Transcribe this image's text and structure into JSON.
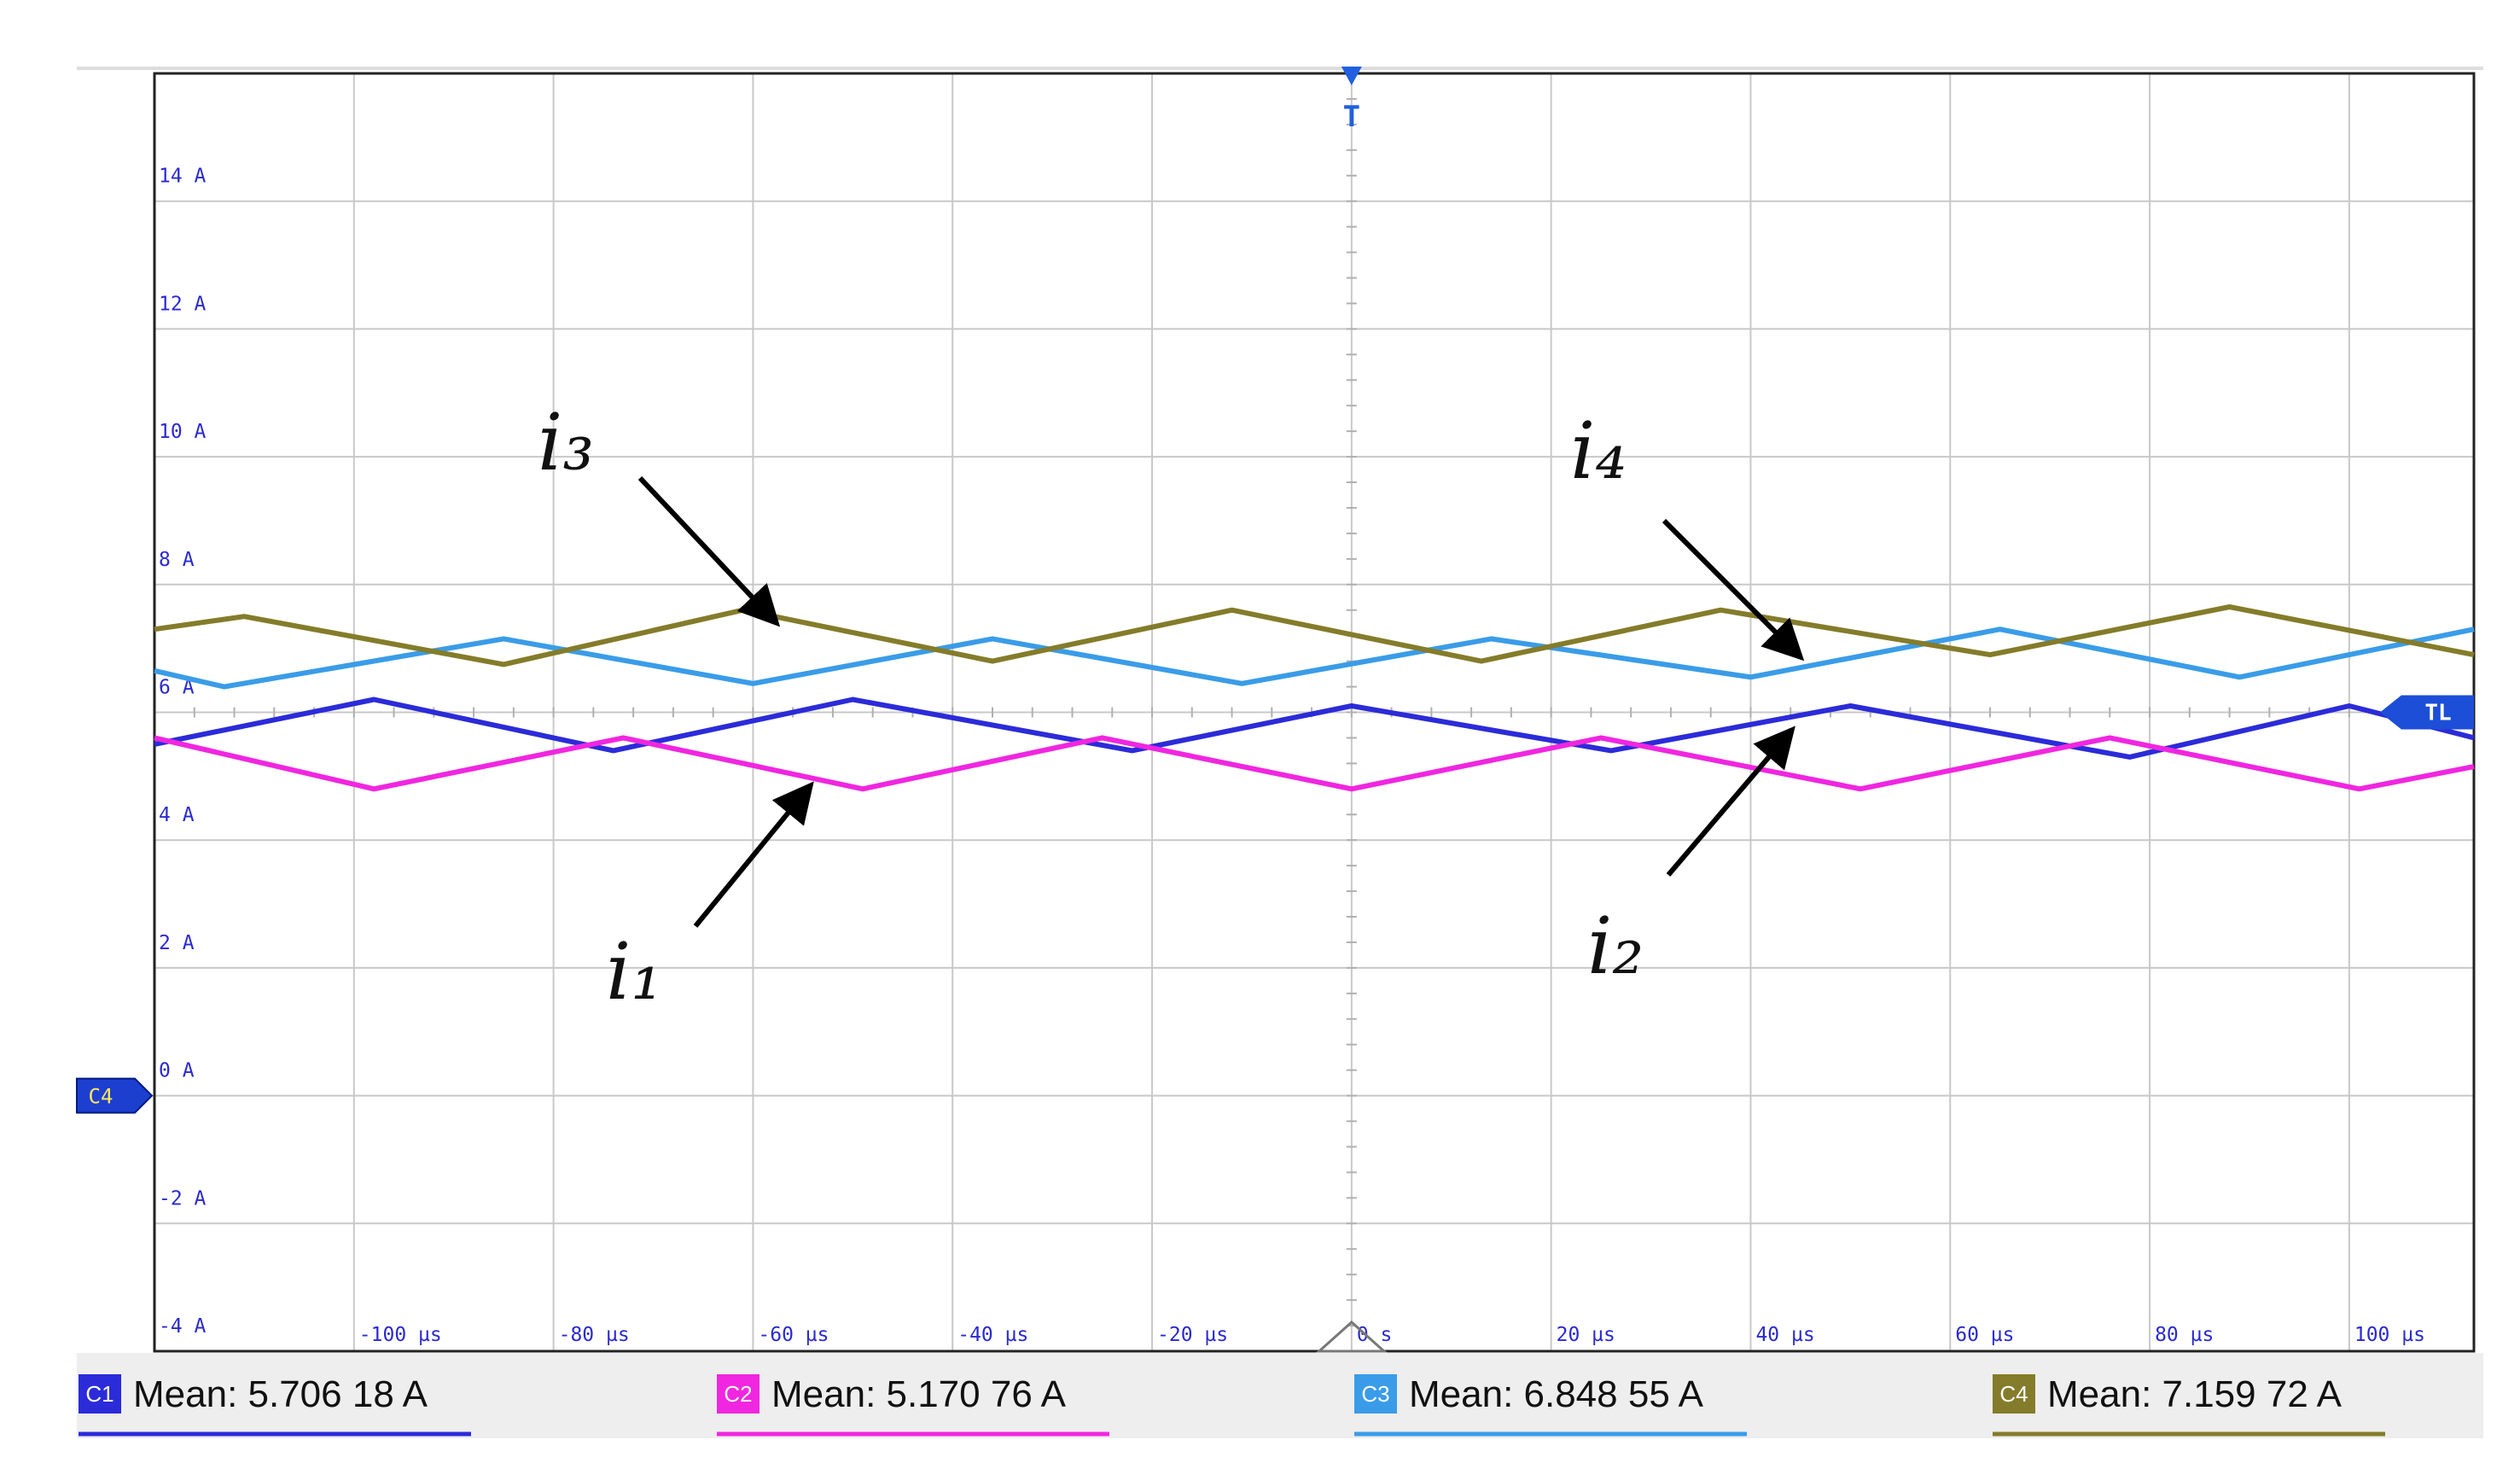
{
  "chart_data": {
    "type": "line",
    "xlim": [
      -120,
      112.5
    ],
    "ylim": [
      -4,
      16
    ],
    "xticks": [
      {
        "value": -100,
        "label": "-100 µs"
      },
      {
        "value": -80,
        "label": "-80 µs"
      },
      {
        "value": -60,
        "label": "-60 µs"
      },
      {
        "value": -40,
        "label": "-40 µs"
      },
      {
        "value": -20,
        "label": "-20 µs"
      },
      {
        "value": 0,
        "label": "0 s"
      },
      {
        "value": 20,
        "label": "20 µs"
      },
      {
        "value": 40,
        "label": "40 µs"
      },
      {
        "value": 60,
        "label": "60 µs"
      },
      {
        "value": 80,
        "label": "80 µs"
      },
      {
        "value": 100,
        "label": "100 µs"
      }
    ],
    "yticks": [
      {
        "value": -4,
        "label": "-4 A"
      },
      {
        "value": -2,
        "label": "-2 A"
      },
      {
        "value": 0,
        "label": "0 A"
      },
      {
        "value": 2,
        "label": "2 A"
      },
      {
        "value": 4,
        "label": "4 A"
      },
      {
        "value": 6,
        "label": "6 A"
      },
      {
        "value": 8,
        "label": "8 A"
      },
      {
        "value": 10,
        "label": "10 A"
      },
      {
        "value": 12,
        "label": "12 A"
      },
      {
        "value": 14,
        "label": "14 A"
      }
    ],
    "grid": true,
    "series": [
      {
        "name": "C1",
        "color": "#2b2bd9",
        "x": [
          -120,
          -98,
          -74,
          -50,
          -22,
          0,
          26,
          50,
          78,
          100,
          112.5
        ],
        "values": [
          5.5,
          6.2,
          5.4,
          6.2,
          5.4,
          6.1,
          5.4,
          6.1,
          5.3,
          6.1,
          5.6
        ]
      },
      {
        "name": "C2",
        "color": "#f026e0",
        "x": [
          -120,
          -98,
          -73,
          -49,
          -25,
          0,
          25,
          51,
          76,
          101,
          112.5
        ],
        "values": [
          5.6,
          4.8,
          5.6,
          4.8,
          5.6,
          4.8,
          5.6,
          4.8,
          5.6,
          4.8,
          5.15
        ]
      },
      {
        "name": "C3",
        "color": "#3a9ce8",
        "x": [
          -120,
          -113,
          -85,
          -60,
          -36,
          -11,
          14,
          40,
          65,
          89,
          112.5
        ],
        "values": [
          6.65,
          6.4,
          7.15,
          6.45,
          7.15,
          6.45,
          7.15,
          6.55,
          7.3,
          6.55,
          7.3
        ]
      },
      {
        "name": "C4",
        "color": "#847c2a",
        "x": [
          -120,
          -111,
          -85,
          -61,
          -36,
          -12,
          13,
          37,
          64,
          88,
          112.5
        ],
        "values": [
          7.3,
          7.5,
          6.75,
          7.6,
          6.8,
          7.6,
          6.8,
          7.6,
          6.9,
          7.65,
          6.9
        ]
      }
    ],
    "annotations": [
      {
        "text": "i₃"
      },
      {
        "text": "i₄"
      },
      {
        "text": "i₁"
      },
      {
        "text": "i₂"
      }
    ],
    "markers": {
      "trigger": "T",
      "trigger_level": "TL",
      "ground": "C4"
    },
    "measurements": [
      {
        "channel": "C1",
        "text": "Mean: 5.706 18 A"
      },
      {
        "channel": "C2",
        "text": "Mean: 5.170 76 A"
      },
      {
        "channel": "C3",
        "text": "Mean: 6.848 55 A"
      },
      {
        "channel": "C4",
        "text": "Mean: 7.159 72 A"
      }
    ]
  }
}
